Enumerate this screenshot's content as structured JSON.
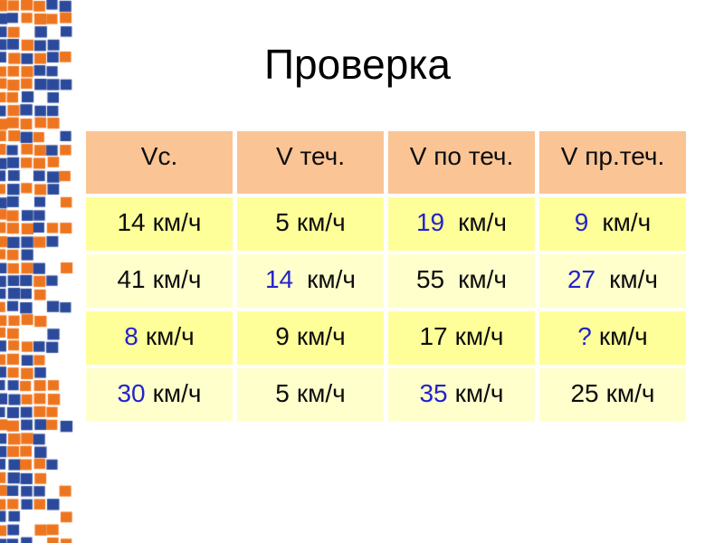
{
  "slide": {
    "title": "Проверка"
  },
  "table": {
    "headers": [
      "Vс.",
      "V теч.",
      "V по теч.",
      "V пр.теч."
    ],
    "unit_label": "км/ч",
    "rows": [
      {
        "cells": [
          {
            "value": "14",
            "blue": false,
            "wide": false
          },
          {
            "value": "5",
            "blue": false,
            "wide": false
          },
          {
            "value": "19",
            "blue": true,
            "wide": true
          },
          {
            "value": "9",
            "blue": true,
            "wide": true
          }
        ]
      },
      {
        "cells": [
          {
            "value": "41",
            "blue": false,
            "wide": false
          },
          {
            "value": "14",
            "blue": true,
            "wide": true
          },
          {
            "value": "55",
            "blue": false,
            "wide": true
          },
          {
            "value": "27",
            "blue": true,
            "wide": true
          }
        ]
      },
      {
        "cells": [
          {
            "value": "8",
            "blue": true,
            "wide": false
          },
          {
            "value": "9",
            "blue": false,
            "wide": false
          },
          {
            "value": "17",
            "blue": false,
            "wide": false
          },
          {
            "value": "?",
            "blue": true,
            "wide": false
          }
        ]
      },
      {
        "cells": [
          {
            "value": "30",
            "blue": true,
            "wide": false
          },
          {
            "value": "5",
            "blue": false,
            "wide": false
          },
          {
            "value": "35",
            "blue": true,
            "wide": false
          },
          {
            "value": "25",
            "blue": false,
            "wide": false
          }
        ]
      }
    ]
  },
  "colors": {
    "header_bg": "#FAC494",
    "row_bg_bright": "#FFFF99",
    "row_bg_pale": "#FFFFCC",
    "highlight_blue": "#2323CC",
    "text_black": "#0d0d0d",
    "mosaic_orange": "#EE751F",
    "mosaic_blue": "#2B4A9B"
  }
}
